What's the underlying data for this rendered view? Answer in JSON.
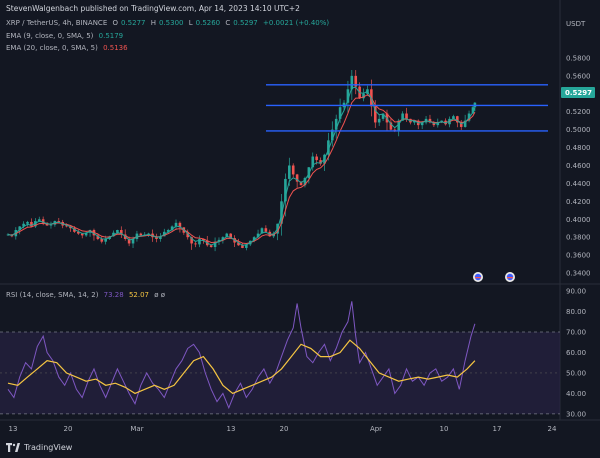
{
  "header": {
    "published": "StevenWalgenbach published on TradingView.com, Apr 14, 2023 14:10 UTC+2"
  },
  "legend": {
    "symbol": "XRP / TetherUS, 4h, BINANCE",
    "o_label": "O",
    "o_value": "0.5277",
    "h_label": "H",
    "h_value": "0.5300",
    "l_label": "L",
    "l_value": "0.5260",
    "c_label": "C",
    "c_value": "0.5297",
    "change": "+0.0021 (+0.40%)",
    "ema9_label": "EMA (9, close, 0, SMA, 5)",
    "ema9_value": "0.5179",
    "ema20_label": "EMA (20, close, 0, SMA, 5)",
    "ema20_value": "0.5136",
    "rsi_label": "RSI (14, close, SMA, 14, 2)",
    "rsi_value1": "73.28",
    "rsi_value2": "52.07",
    "rsi_extra": "ø ø"
  },
  "axes": {
    "currency": "USDT",
    "last_price": "0.5297",
    "price_ticks": [
      "0.5800",
      "0.5600",
      "0.5400",
      "0.5200",
      "0.5000",
      "0.4800",
      "0.4600",
      "0.4400",
      "0.4200",
      "0.4000",
      "0.3800",
      "0.3600",
      "0.3400"
    ],
    "rsi_ticks": [
      "90.00",
      "80.00",
      "70.00",
      "60.00",
      "50.00",
      "40.00",
      "30.00"
    ],
    "x_ticks": [
      "13",
      "20",
      "Mar",
      "13",
      "20",
      "Apr",
      "10",
      "17",
      "24"
    ]
  },
  "colors": {
    "background": "#131722",
    "bull": "#26a69a",
    "bear": "#ef5350",
    "ema9": "#26a69a",
    "ema20": "#ef5350",
    "hline": "#2962ff",
    "rsi": "#7e57c2",
    "rsi_ma": "#f5c542",
    "rsi_band": "#2a2347"
  },
  "footer": {
    "brand": "TradingView",
    "logo_icon": "tradingview-logo-icon"
  },
  "chart_data": {
    "type": "candlestick",
    "symbol": "XRP / TetherUS",
    "interval": "4h",
    "ylim": [
      0.33,
      0.6
    ],
    "rsi_ylim": [
      28,
      92
    ],
    "horizontal_levels": [
      0.55,
      0.527,
      0.4985
    ],
    "candles_close_path": [
      [
        0,
        0.383
      ],
      [
        4,
        0.381
      ],
      [
        8,
        0.388
      ],
      [
        12,
        0.392
      ],
      [
        16,
        0.395
      ],
      [
        20,
        0.397
      ],
      [
        24,
        0.392
      ],
      [
        28,
        0.398
      ],
      [
        32,
        0.4
      ],
      [
        36,
        0.396
      ],
      [
        40,
        0.393
      ],
      [
        44,
        0.394
      ],
      [
        48,
        0.398
      ],
      [
        52,
        0.397
      ],
      [
        56,
        0.393
      ],
      [
        60,
        0.392
      ],
      [
        64,
        0.39
      ],
      [
        68,
        0.386
      ],
      [
        72,
        0.384
      ],
      [
        76,
        0.382
      ],
      [
        80,
        0.385
      ],
      [
        84,
        0.388
      ],
      [
        88,
        0.382
      ],
      [
        92,
        0.378
      ],
      [
        96,
        0.375
      ],
      [
        100,
        0.378
      ],
      [
        104,
        0.381
      ],
      [
        108,
        0.385
      ],
      [
        112,
        0.388
      ],
      [
        116,
        0.383
      ],
      [
        120,
        0.378
      ],
      [
        124,
        0.373
      ],
      [
        128,
        0.378
      ],
      [
        132,
        0.384
      ],
      [
        136,
        0.382
      ],
      [
        140,
        0.383
      ],
      [
        144,
        0.384
      ],
      [
        148,
        0.38
      ],
      [
        152,
        0.378
      ],
      [
        156,
        0.381
      ],
      [
        160,
        0.386
      ],
      [
        164,
        0.388
      ],
      [
        168,
        0.392
      ],
      [
        172,
        0.396
      ],
      [
        176,
        0.391
      ],
      [
        180,
        0.385
      ],
      [
        184,
        0.38
      ],
      [
        188,
        0.373
      ],
      [
        192,
        0.372
      ],
      [
        196,
        0.378
      ],
      [
        200,
        0.376
      ],
      [
        204,
        0.371
      ],
      [
        208,
        0.369
      ],
      [
        212,
        0.375
      ],
      [
        216,
        0.377
      ],
      [
        220,
        0.38
      ],
      [
        224,
        0.384
      ],
      [
        228,
        0.379
      ],
      [
        232,
        0.374
      ],
      [
        236,
        0.371
      ],
      [
        240,
        0.368
      ],
      [
        244,
        0.372
      ],
      [
        248,
        0.376
      ],
      [
        252,
        0.38
      ],
      [
        256,
        0.384
      ],
      [
        260,
        0.39
      ],
      [
        264,
        0.386
      ],
      [
        268,
        0.381
      ],
      [
        272,
        0.384
      ],
      [
        276,
        0.395
      ],
      [
        280,
        0.42
      ],
      [
        284,
        0.445
      ],
      [
        288,
        0.46
      ],
      [
        292,
        0.45
      ],
      [
        296,
        0.442
      ],
      [
        300,
        0.438
      ],
      [
        304,
        0.446
      ],
      [
        308,
        0.458
      ],
      [
        312,
        0.47
      ],
      [
        316,
        0.466
      ],
      [
        320,
        0.462
      ],
      [
        324,
        0.472
      ],
      [
        328,
        0.488
      ],
      [
        332,
        0.5
      ],
      [
        336,
        0.512
      ],
      [
        340,
        0.525
      ],
      [
        344,
        0.53
      ],
      [
        348,
        0.545
      ],
      [
        352,
        0.56
      ],
      [
        356,
        0.548
      ],
      [
        360,
        0.535
      ],
      [
        364,
        0.54
      ],
      [
        368,
        0.545
      ],
      [
        372,
        0.526
      ],
      [
        376,
        0.508
      ],
      [
        380,
        0.512
      ],
      [
        384,
        0.518
      ],
      [
        388,
        0.508
      ],
      [
        392,
        0.5
      ],
      [
        396,
        0.498
      ],
      [
        400,
        0.51
      ],
      [
        404,
        0.518
      ],
      [
        408,
        0.512
      ],
      [
        412,
        0.508
      ],
      [
        416,
        0.51
      ],
      [
        420,
        0.505
      ],
      [
        424,
        0.508
      ],
      [
        428,
        0.512
      ],
      [
        432,
        0.508
      ],
      [
        436,
        0.505
      ],
      [
        440,
        0.508
      ],
      [
        444,
        0.51
      ],
      [
        448,
        0.506
      ],
      [
        452,
        0.512
      ],
      [
        456,
        0.515
      ],
      [
        460,
        0.508
      ],
      [
        464,
        0.503
      ],
      [
        468,
        0.51
      ],
      [
        472,
        0.518
      ],
      [
        476,
        0.525
      ],
      [
        478,
        0.53
      ]
    ],
    "rsi_path": [
      [
        0,
        42
      ],
      [
        6,
        38
      ],
      [
        12,
        48
      ],
      [
        18,
        55
      ],
      [
        24,
        52
      ],
      [
        30,
        63
      ],
      [
        36,
        68
      ],
      [
        40,
        60
      ],
      [
        46,
        56
      ],
      [
        52,
        48
      ],
      [
        58,
        44
      ],
      [
        64,
        50
      ],
      [
        70,
        42
      ],
      [
        76,
        38
      ],
      [
        82,
        46
      ],
      [
        88,
        52
      ],
      [
        94,
        44
      ],
      [
        100,
        38
      ],
      [
        106,
        45
      ],
      [
        112,
        52
      ],
      [
        118,
        46
      ],
      [
        124,
        40
      ],
      [
        130,
        35
      ],
      [
        136,
        44
      ],
      [
        142,
        50
      ],
      [
        148,
        45
      ],
      [
        154,
        42
      ],
      [
        160,
        38
      ],
      [
        166,
        45
      ],
      [
        172,
        52
      ],
      [
        178,
        56
      ],
      [
        184,
        62
      ],
      [
        190,
        64
      ],
      [
        196,
        60
      ],
      [
        202,
        50
      ],
      [
        208,
        42
      ],
      [
        214,
        36
      ],
      [
        220,
        40
      ],
      [
        226,
        33
      ],
      [
        232,
        40
      ],
      [
        238,
        45
      ],
      [
        244,
        38
      ],
      [
        250,
        42
      ],
      [
        256,
        48
      ],
      [
        262,
        52
      ],
      [
        268,
        45
      ],
      [
        274,
        50
      ],
      [
        280,
        58
      ],
      [
        286,
        66
      ],
      [
        292,
        72
      ],
      [
        296,
        84
      ],
      [
        300,
        72
      ],
      [
        306,
        58
      ],
      [
        312,
        55
      ],
      [
        318,
        60
      ],
      [
        324,
        64
      ],
      [
        330,
        56
      ],
      [
        336,
        62
      ],
      [
        342,
        70
      ],
      [
        348,
        75
      ],
      [
        352,
        85
      ],
      [
        356,
        68
      ],
      [
        360,
        55
      ],
      [
        366,
        60
      ],
      [
        372,
        52
      ],
      [
        378,
        44
      ],
      [
        384,
        48
      ],
      [
        390,
        52
      ],
      [
        396,
        40
      ],
      [
        402,
        44
      ],
      [
        408,
        52
      ],
      [
        414,
        46
      ],
      [
        420,
        48
      ],
      [
        426,
        44
      ],
      [
        432,
        50
      ],
      [
        438,
        52
      ],
      [
        444,
        46
      ],
      [
        450,
        48
      ],
      [
        456,
        52
      ],
      [
        462,
        42
      ],
      [
        468,
        56
      ],
      [
        474,
        68
      ],
      [
        478,
        74
      ]
    ],
    "rsi_ma_path": [
      [
        0,
        45
      ],
      [
        10,
        44
      ],
      [
        20,
        48
      ],
      [
        30,
        52
      ],
      [
        40,
        56
      ],
      [
        50,
        55
      ],
      [
        60,
        50
      ],
      [
        70,
        48
      ],
      [
        80,
        46
      ],
      [
        90,
        47
      ],
      [
        100,
        44
      ],
      [
        110,
        45
      ],
      [
        120,
        43
      ],
      [
        130,
        40
      ],
      [
        140,
        42
      ],
      [
        150,
        44
      ],
      [
        160,
        42
      ],
      [
        170,
        44
      ],
      [
        180,
        50
      ],
      [
        190,
        56
      ],
      [
        200,
        58
      ],
      [
        210,
        52
      ],
      [
        220,
        44
      ],
      [
        230,
        40
      ],
      [
        240,
        42
      ],
      [
        250,
        44
      ],
      [
        260,
        46
      ],
      [
        270,
        48
      ],
      [
        280,
        52
      ],
      [
        290,
        58
      ],
      [
        300,
        64
      ],
      [
        310,
        62
      ],
      [
        320,
        58
      ],
      [
        330,
        58
      ],
      [
        340,
        60
      ],
      [
        350,
        66
      ],
      [
        360,
        62
      ],
      [
        370,
        56
      ],
      [
        380,
        50
      ],
      [
        390,
        48
      ],
      [
        400,
        46
      ],
      [
        410,
        47
      ],
      [
        420,
        48
      ],
      [
        430,
        47
      ],
      [
        440,
        48
      ],
      [
        450,
        49
      ],
      [
        460,
        48
      ],
      [
        470,
        52
      ],
      [
        478,
        56
      ]
    ]
  }
}
